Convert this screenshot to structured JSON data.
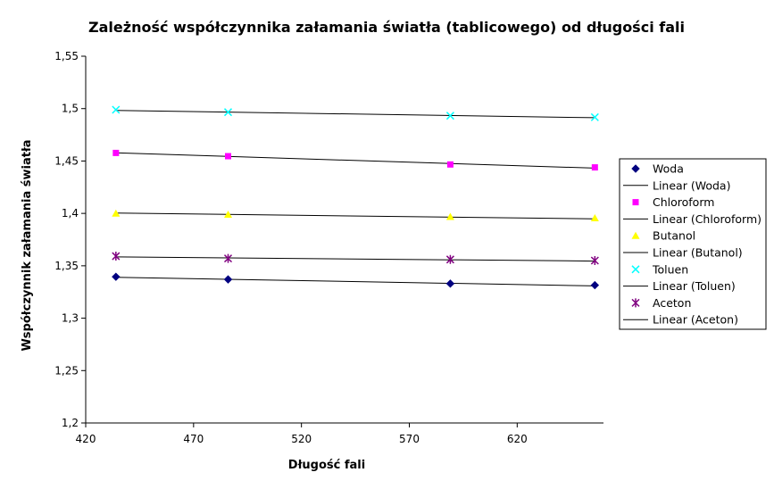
{
  "chart_data": {
    "type": "scatter",
    "title": "Zależność współczynnika załamania światła (tablicowego) od długości fali",
    "xlabel": "Długość fali",
    "ylabel": "Współczynnik załamania światła",
    "xlim": [
      420,
      660
    ],
    "ylim": [
      1.2,
      1.55
    ],
    "x_ticks": [
      420,
      470,
      520,
      570,
      620
    ],
    "x_tick_labels": [
      "420",
      "470",
      "520",
      "570",
      "620"
    ],
    "y_ticks": [
      1.2,
      1.25,
      1.3,
      1.35,
      1.4,
      1.45,
      1.5,
      1.55
    ],
    "y_tick_labels": [
      "1,2",
      "1,25",
      "1,3",
      "1,35",
      "1,4",
      "1,45",
      "1,5",
      "1,55"
    ],
    "grid": false,
    "legend_position": "right",
    "x": [
      434,
      486,
      589,
      656
    ],
    "series": [
      {
        "name": "Woda",
        "values": [
          1.3395,
          1.337,
          1.333,
          1.3315
        ],
        "color": "#000080",
        "marker": "diamond",
        "trend_name": "Linear (Woda)",
        "trend": [
          1.339,
          1.3308
        ]
      },
      {
        "name": "Chloroform",
        "values": [
          1.4577,
          1.4546,
          1.4467,
          1.4439
        ],
        "color": "#ff00ff",
        "marker": "square",
        "trend_name": "Linear (Chloroform)",
        "trend": [
          1.4578,
          1.4432
        ]
      },
      {
        "name": "Butanol",
        "values": [
          1.3999,
          1.3988,
          1.3967,
          1.3954
        ],
        "color": "#ffff00",
        "marker": "triangle",
        "trend_name": "Linear (Butanol)",
        "trend": [
          1.4003,
          1.3948
        ]
      },
      {
        "name": "Toluen",
        "values": [
          1.4989,
          1.4966,
          1.4932,
          1.4918
        ],
        "color": "#00ffff",
        "marker": "x",
        "trend_name": "Linear (Toluen)",
        "trend": [
          1.4983,
          1.4913
        ]
      },
      {
        "name": "Aceton",
        "values": [
          1.3592,
          1.357,
          1.356,
          1.355
        ],
        "color": "#800080",
        "marker": "star",
        "trend_name": "Linear (Aceton)",
        "trend": [
          1.3585,
          1.3545
        ]
      }
    ]
  }
}
